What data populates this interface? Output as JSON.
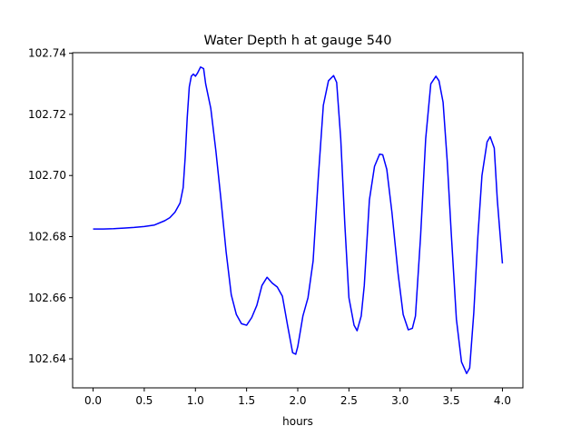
{
  "chart_data": {
    "type": "line",
    "title": "Water Depth h at gauge 540",
    "xlabel": "hours",
    "ylabel": "",
    "xlim": [
      -0.2,
      4.2
    ],
    "ylim": [
      102.6305,
      102.7402
    ],
    "grid": false,
    "xticks": [
      0.0,
      0.5,
      1.0,
      1.5,
      2.0,
      2.5,
      3.0,
      3.5,
      4.0
    ],
    "xtick_labels": [
      "0.0",
      "0.5",
      "1.0",
      "1.5",
      "2.0",
      "2.5",
      "3.0",
      "3.5",
      "4.0"
    ],
    "yticks": [
      102.64,
      102.66,
      102.68,
      102.7,
      102.72,
      102.74
    ],
    "ytick_labels": [
      "102.64",
      "102.66",
      "102.68",
      "102.70",
      "102.72",
      "102.74"
    ],
    "series": [
      {
        "color": "#0000ff",
        "points": [
          [
            0.0,
            102.6825
          ],
          [
            0.1,
            102.6825
          ],
          [
            0.2,
            102.6826
          ],
          [
            0.3,
            102.6828
          ],
          [
            0.4,
            102.683
          ],
          [
            0.5,
            102.6833
          ],
          [
            0.6,
            102.6838
          ],
          [
            0.7,
            102.6852
          ],
          [
            0.75,
            102.6862
          ],
          [
            0.8,
            102.688
          ],
          [
            0.85,
            102.691
          ],
          [
            0.88,
            102.696
          ],
          [
            0.9,
            102.706
          ],
          [
            0.92,
            102.719
          ],
          [
            0.94,
            102.729
          ],
          [
            0.96,
            102.7325
          ],
          [
            0.98,
            102.7332
          ],
          [
            1.0,
            102.7325
          ],
          [
            1.02,
            102.7335
          ],
          [
            1.05,
            102.7355
          ],
          [
            1.08,
            102.735
          ],
          [
            1.1,
            102.73
          ],
          [
            1.15,
            102.722
          ],
          [
            1.2,
            102.708
          ],
          [
            1.25,
            102.692
          ],
          [
            1.3,
            102.675
          ],
          [
            1.35,
            102.661
          ],
          [
            1.4,
            102.6545
          ],
          [
            1.45,
            102.6515
          ],
          [
            1.5,
            102.651
          ],
          [
            1.55,
            102.6535
          ],
          [
            1.6,
            102.6575
          ],
          [
            1.65,
            102.664
          ],
          [
            1.7,
            102.6667
          ],
          [
            1.75,
            102.6648
          ],
          [
            1.8,
            102.6635
          ],
          [
            1.85,
            102.6605
          ],
          [
            1.9,
            102.651
          ],
          [
            1.95,
            102.642
          ],
          [
            1.98,
            102.6415
          ],
          [
            2.0,
            102.644
          ],
          [
            2.05,
            102.654
          ],
          [
            2.1,
            102.66
          ],
          [
            2.15,
            102.672
          ],
          [
            2.2,
            102.699
          ],
          [
            2.25,
            102.723
          ],
          [
            2.3,
            102.731
          ],
          [
            2.35,
            102.7327
          ],
          [
            2.38,
            102.7305
          ],
          [
            2.42,
            102.712
          ],
          [
            2.46,
            102.684
          ],
          [
            2.5,
            102.66
          ],
          [
            2.55,
            102.651
          ],
          [
            2.58,
            102.6492
          ],
          [
            2.62,
            102.654
          ],
          [
            2.65,
            102.664
          ],
          [
            2.7,
            102.692
          ],
          [
            2.75,
            102.703
          ],
          [
            2.8,
            102.707
          ],
          [
            2.83,
            102.7068
          ],
          [
            2.87,
            102.702
          ],
          [
            2.92,
            102.688
          ],
          [
            2.98,
            102.668
          ],
          [
            3.03,
            102.6545
          ],
          [
            3.08,
            102.6495
          ],
          [
            3.12,
            102.65
          ],
          [
            3.15,
            102.654
          ],
          [
            3.2,
            102.68
          ],
          [
            3.25,
            102.712
          ],
          [
            3.3,
            102.73
          ],
          [
            3.35,
            102.7325
          ],
          [
            3.38,
            102.731
          ],
          [
            3.42,
            102.724
          ],
          [
            3.46,
            102.705
          ],
          [
            3.5,
            102.681
          ],
          [
            3.55,
            102.653
          ],
          [
            3.6,
            102.639
          ],
          [
            3.65,
            102.6352
          ],
          [
            3.68,
            102.637
          ],
          [
            3.72,
            102.655
          ],
          [
            3.76,
            102.68
          ],
          [
            3.8,
            102.7
          ],
          [
            3.85,
            102.711
          ],
          [
            3.88,
            102.7127
          ],
          [
            3.92,
            102.709
          ],
          [
            3.95,
            102.692
          ],
          [
            4.0,
            102.6712
          ]
        ]
      }
    ]
  }
}
